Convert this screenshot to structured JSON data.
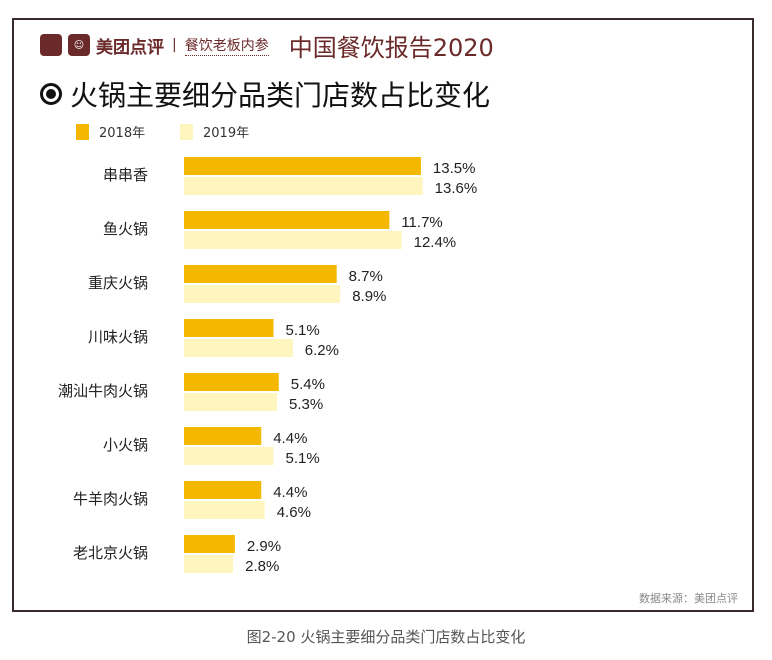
{
  "header": {
    "logo_badge": "美团",
    "brand": "美团点评",
    "separator": "|",
    "partner": "餐饮老板内参",
    "report_title": "中国餐饮报告2020"
  },
  "chart_data": {
    "type": "bar",
    "orientation": "horizontal",
    "title": "火锅主要细分品类门店数占比变化",
    "categories": [
      "串串香",
      "鱼火锅",
      "重庆火锅",
      "川味火锅",
      "潮汕牛肉火锅",
      "小火锅",
      "牛羊肉火锅",
      "老北京火锅"
    ],
    "series": [
      {
        "name": "2018年",
        "color": "#F5B800",
        "values": [
          13.5,
          11.7,
          8.7,
          5.1,
          5.4,
          4.4,
          4.4,
          2.9
        ],
        "labels": [
          "13.5%",
          "11.7%",
          "8.7%",
          "5.1%",
          "5.4%",
          "4.4%",
          "4.4%",
          "2.9%"
        ]
      },
      {
        "name": "2019年",
        "color": "#FFF5BF",
        "values": [
          13.6,
          12.4,
          8.9,
          6.2,
          5.3,
          5.1,
          4.6,
          2.8
        ],
        "labels": [
          "13.6%",
          "12.4%",
          "8.9%",
          "6.2%",
          "5.3%",
          "5.1%",
          "4.6%",
          "2.8%"
        ]
      }
    ],
    "xlim": [
      0,
      15
    ],
    "grid": false,
    "legend_position": "top-left"
  },
  "source": "数据来源：美团点评",
  "caption": "图2-20   火锅主要细分品类门店数占比变化"
}
